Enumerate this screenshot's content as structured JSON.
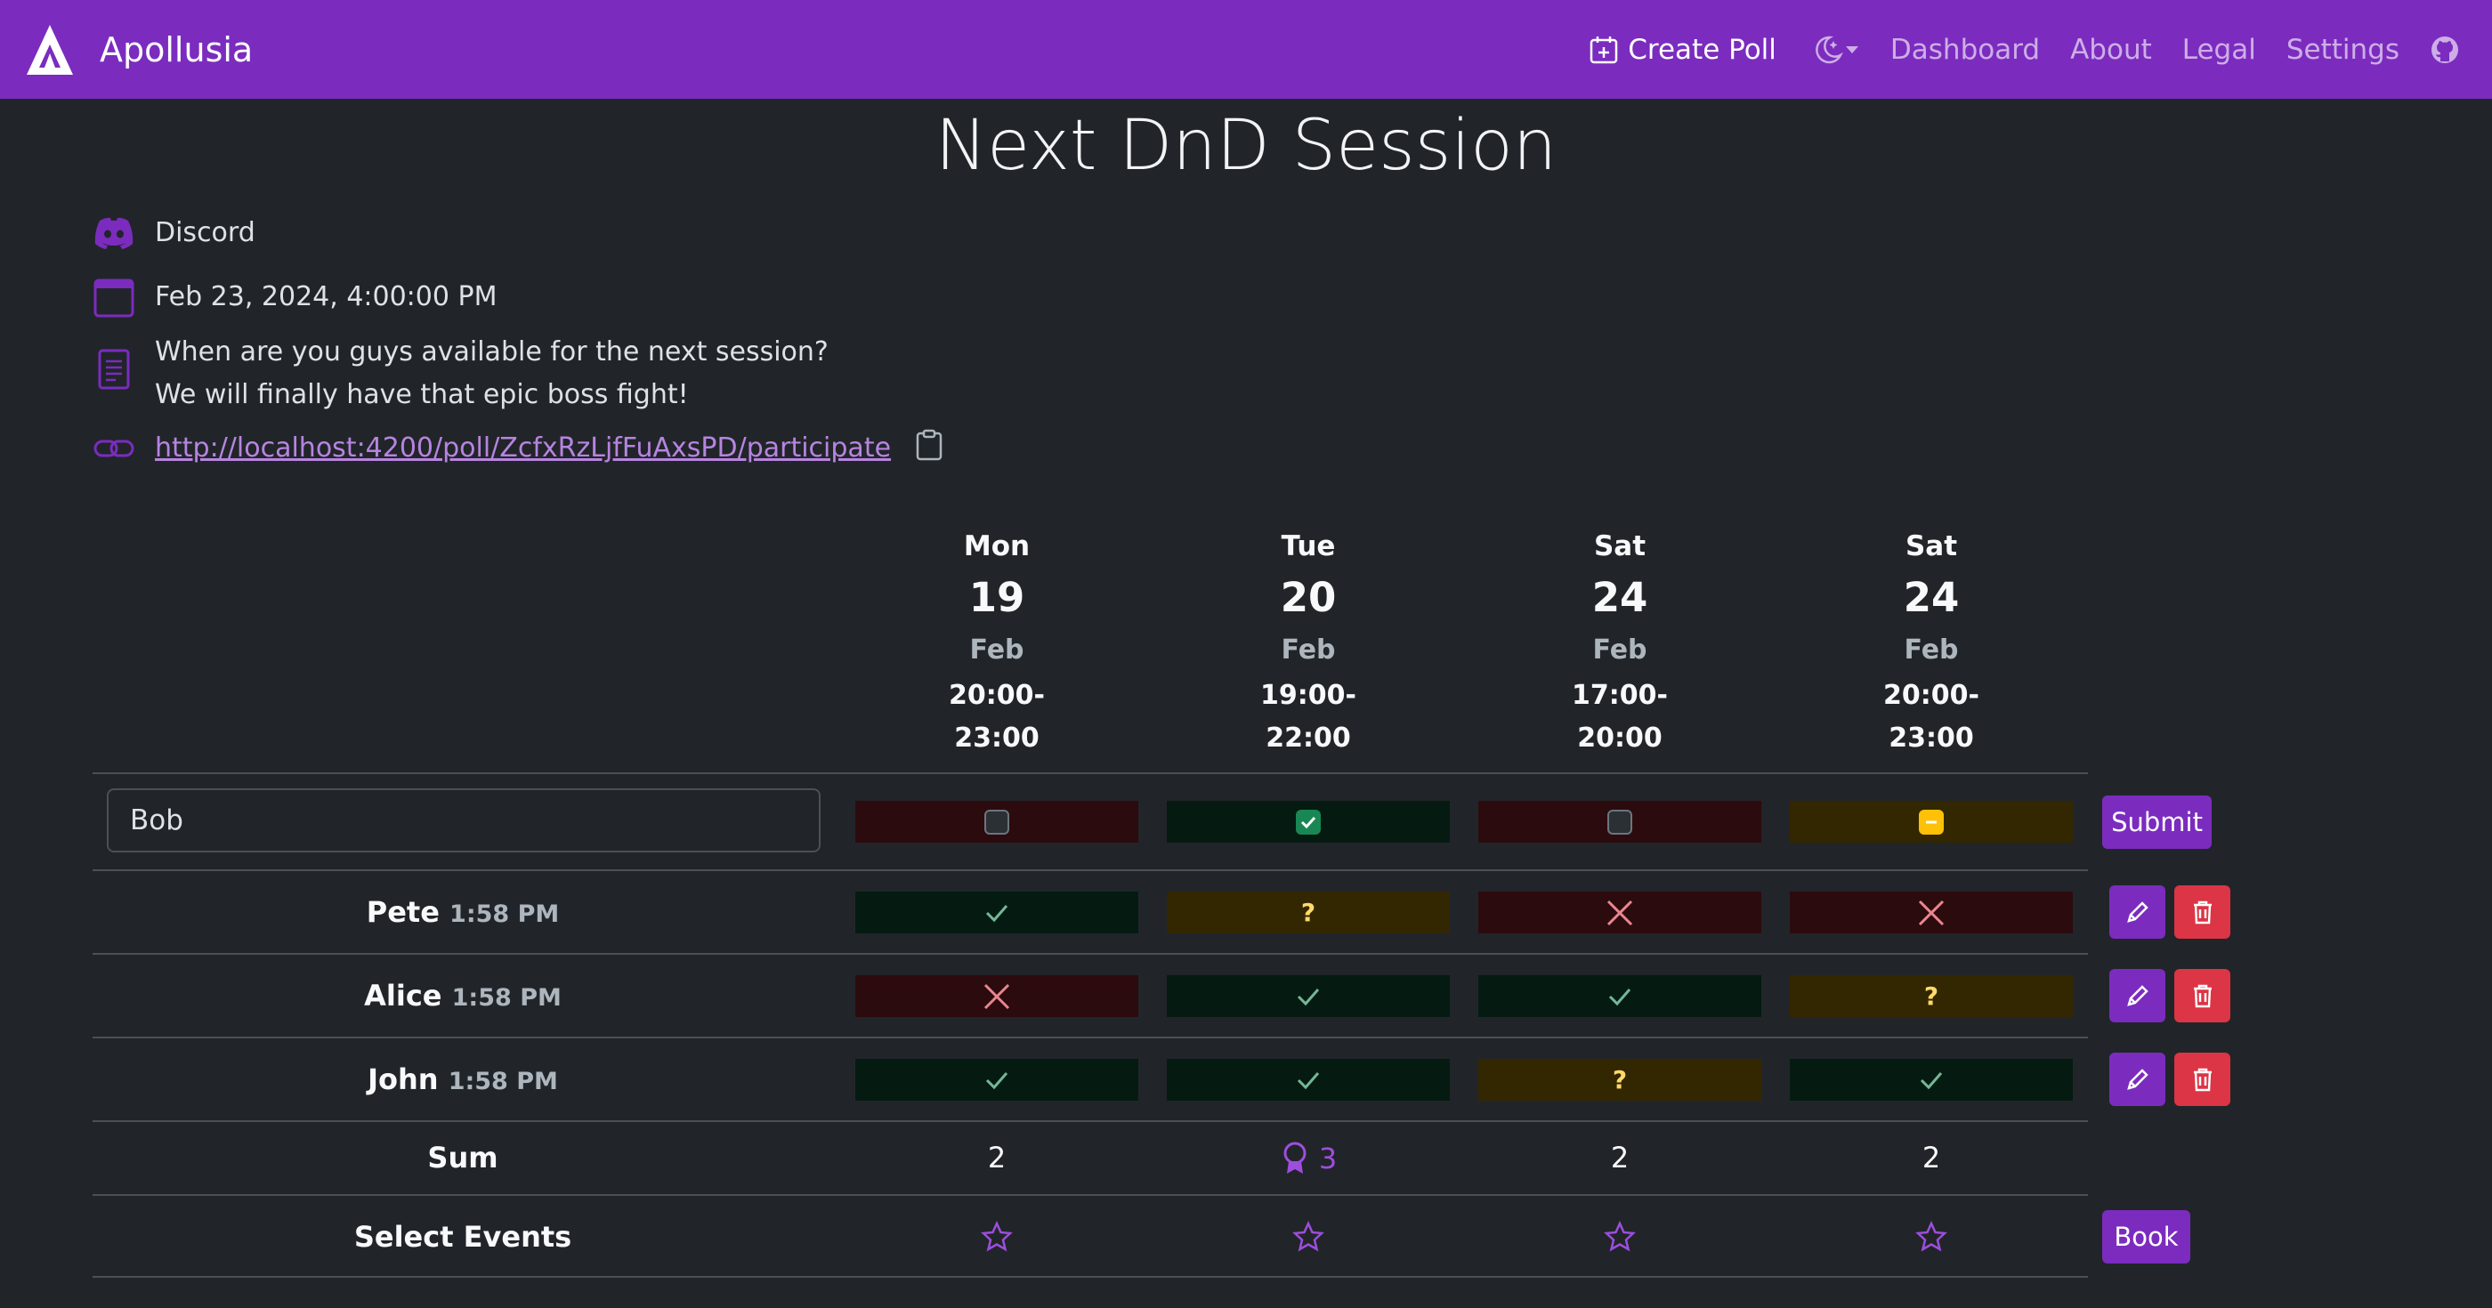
{
  "app": {
    "name": "Apollusia"
  },
  "nav": {
    "create_poll": "Create Poll",
    "links": [
      "Dashboard",
      "About",
      "Legal",
      "Settings"
    ]
  },
  "poll": {
    "title": "Next DnD Session",
    "location": "Discord",
    "deadline": "Feb 23, 2024, 4:00:00 PM",
    "description_line1": "When are you guys available for the next session?",
    "description_line2": "We will finally have that epic boss fight!",
    "link": "http://localhost:4200/poll/ZcfxRzLjfFuAxsPD/participate"
  },
  "events": [
    {
      "day": "Mon",
      "date": "19",
      "month": "Feb",
      "time1": "20:00-",
      "time2": "23:00"
    },
    {
      "day": "Tue",
      "date": "20",
      "month": "Feb",
      "time1": "19:00-",
      "time2": "22:00"
    },
    {
      "day": "Sat",
      "date": "24",
      "month": "Feb",
      "time1": "17:00-",
      "time2": "20:00"
    },
    {
      "day": "Sat",
      "date": "24",
      "month": "Feb",
      "time1": "20:00-",
      "time2": "23:00"
    }
  ],
  "form": {
    "name_value": "Bob",
    "choices": [
      "no",
      "yes",
      "no",
      "maybe"
    ],
    "submit_label": "Submit"
  },
  "participants": [
    {
      "name": "Pete",
      "time": "1:58 PM",
      "answers": [
        "yes",
        "maybe",
        "no",
        "no"
      ]
    },
    {
      "name": "Alice",
      "time": "1:58 PM",
      "answers": [
        "no",
        "yes",
        "yes",
        "maybe"
      ]
    },
    {
      "name": "John",
      "time": "1:58 PM",
      "answers": [
        "yes",
        "yes",
        "maybe",
        "yes"
      ]
    }
  ],
  "maybe_symbol": "?",
  "sum": {
    "label": "Sum",
    "values": [
      "2",
      "3",
      "2",
      "2"
    ],
    "best_index": 1
  },
  "select_events": {
    "label": "Select Events",
    "book_label": "Book"
  },
  "colors": {
    "primary": "#7b2cbf",
    "danger": "#dc3545",
    "success": "#198754",
    "warning": "#ffc107"
  }
}
